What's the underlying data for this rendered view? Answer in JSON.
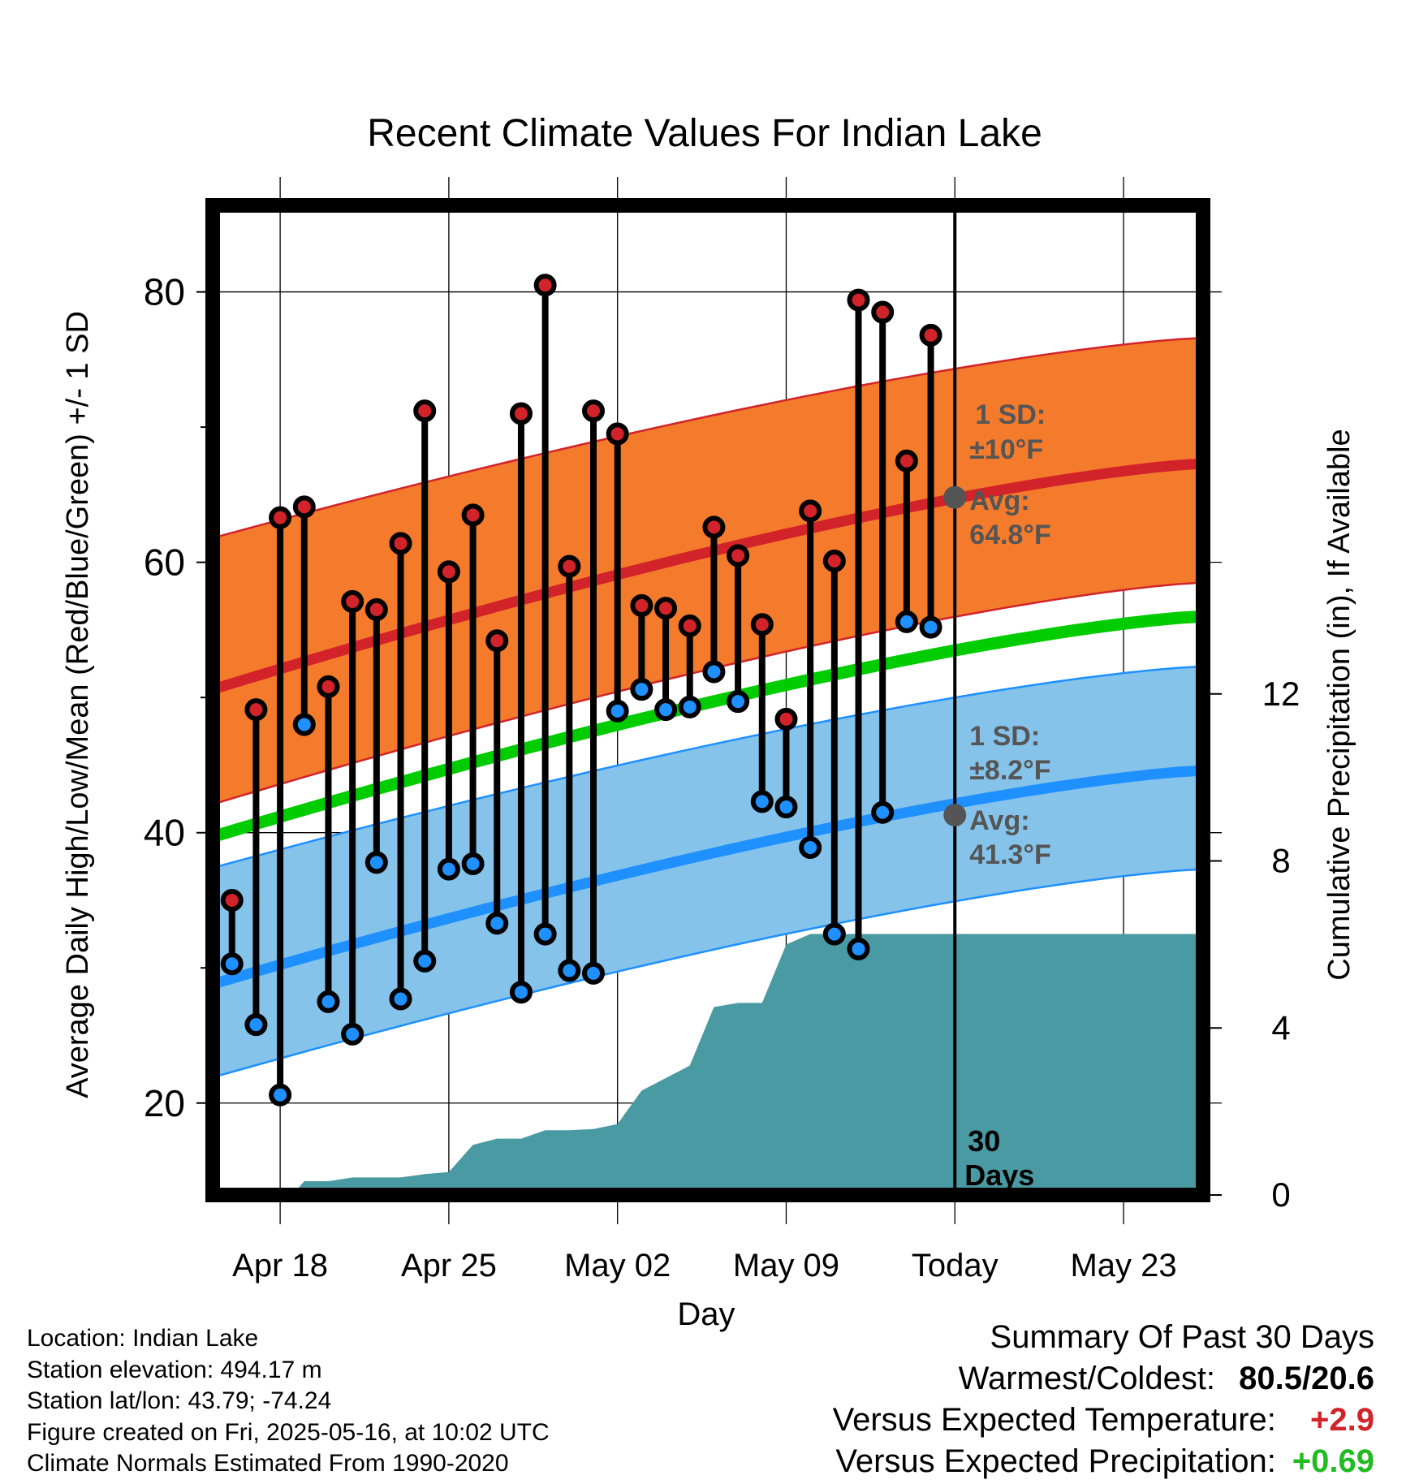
{
  "chart_data": {
    "type": "line",
    "title": "Recent Climate Values For Indian Lake",
    "xlabel": "Day",
    "ylabel": "Average Daily High/Low/Mean (Red/Blue/Green) +/- 1 SD",
    "y2label": "Cumulative Precipitation (in), If Available",
    "x_tick_labels": [
      "Apr 18",
      "Apr 25",
      "May 02",
      "May 09",
      "Today",
      "May 23"
    ],
    "x_tick_days": [
      2,
      9,
      16,
      23,
      30,
      37
    ],
    "x_range_days": [
      -0.8,
      40.3
    ],
    "ylim": [
      13.2,
      86.4
    ],
    "y_ticks": [
      20,
      40,
      60,
      80
    ],
    "y_minor_ticks": [
      30,
      50,
      70
    ],
    "y2lim": [
      0,
      23.7
    ],
    "y2_ticks": [
      0,
      4,
      8,
      12
    ],
    "grid": true,
    "normals": {
      "high_mean": [
        50.6,
        67.3
      ],
      "high_upper": [
        61.8,
        76.6
      ],
      "high_lower": [
        42.1,
        58.5
      ],
      "low_mean": [
        28.8,
        44.6
      ],
      "low_upper": [
        37.4,
        52.3
      ],
      "low_lower": [
        21.9,
        37.3
      ],
      "mean": [
        39.7,
        56.0
      ]
    },
    "daily": {
      "days": [
        0,
        1,
        2,
        3,
        4,
        5,
        6,
        7,
        8,
        9,
        10,
        11,
        12,
        13,
        14,
        15,
        16,
        17,
        18,
        19,
        20,
        21,
        22,
        23,
        24,
        25,
        26,
        27,
        28,
        29
      ],
      "highs": [
        35.0,
        49.1,
        63.3,
        64.1,
        50.8,
        57.1,
        56.5,
        61.4,
        71.2,
        59.3,
        63.5,
        54.2,
        71.0,
        80.5,
        59.7,
        71.2,
        69.5,
        56.8,
        56.6,
        55.3,
        62.6,
        60.5,
        55.4,
        48.4,
        63.8,
        60.1,
        79.4,
        78.5,
        67.5,
        76.8
      ],
      "lows": [
        30.3,
        25.8,
        20.6,
        48.0,
        27.5,
        25.1,
        37.8,
        27.7,
        30.5,
        37.3,
        37.7,
        33.3,
        28.2,
        32.5,
        29.8,
        29.6,
        49.0,
        50.6,
        49.1,
        49.3,
        51.9,
        49.7,
        42.3,
        41.9,
        38.9,
        32.5,
        31.4,
        41.5,
        55.6,
        55.2
      ]
    },
    "precip": {
      "days": [
        2.5,
        3.0,
        4.0,
        5.0,
        6.0,
        7.0,
        8.0,
        9.0,
        10.0,
        11.0,
        12.0,
        13.0,
        14.0,
        15.0,
        16.0,
        17.0,
        18.0,
        19.0,
        20.0,
        21.0,
        22.0,
        23.0,
        24.0,
        25.0,
        26.0,
        27.0,
        28.0,
        29.0,
        30.0,
        40.3
      ],
      "values": [
        0.0,
        0.33,
        0.33,
        0.42,
        0.42,
        0.42,
        0.5,
        0.55,
        1.2,
        1.35,
        1.35,
        1.55,
        1.55,
        1.58,
        1.7,
        2.5,
        2.8,
        3.1,
        4.5,
        4.6,
        4.6,
        6.0,
        6.25,
        6.25,
        6.25,
        6.25,
        6.25,
        6.25,
        6.25,
        6.25
      ]
    },
    "today_markers": {
      "high_avg": 64.8,
      "low_avg": 41.3
    },
    "annotations": {
      "high_sd_label": "1 SD:",
      "high_sd_value": "±10°F",
      "high_avg_label": "Avg:",
      "high_avg_value": "64.8°F",
      "low_sd_label": "1 SD:",
      "low_sd_value": "±8.2°F",
      "low_avg_label": "Avg:",
      "low_avg_value": "41.3°F",
      "period_count": "30",
      "period_unit": "Days"
    },
    "colors": {
      "high_band": "#f47a2c",
      "high_line": "#d2232a",
      "low_band": "#85c3ea",
      "low_line": "#1e90ff",
      "mean_line": "#00cc00",
      "precip": "#4a9aa4",
      "high_marker": "#d2232a",
      "low_marker": "#1e90ff",
      "annotation": "#555555",
      "warm_delta": "#d2232a",
      "wet_delta": "#22bb22"
    }
  },
  "info": {
    "location": "Location: Indian Lake",
    "elevation": "Station elevation: 494.17 m",
    "latlon": "Station lat/lon: 43.79; -74.24",
    "created": "Figure created on Fri, 2025-05-16, at 10:02 UTC",
    "normals": "Climate Normals Estimated From 1990-2020"
  },
  "summary": {
    "heading": "Summary Of Past 30 Days",
    "warm_cold_label": "Warmest/Coldest:",
    "warm_cold_value": "80.5/20.6",
    "temp_label": "Versus Expected Temperature:",
    "temp_value": "+2.9",
    "precip_label": "Versus Expected Precipitation:",
    "precip_value": "+0.69"
  }
}
